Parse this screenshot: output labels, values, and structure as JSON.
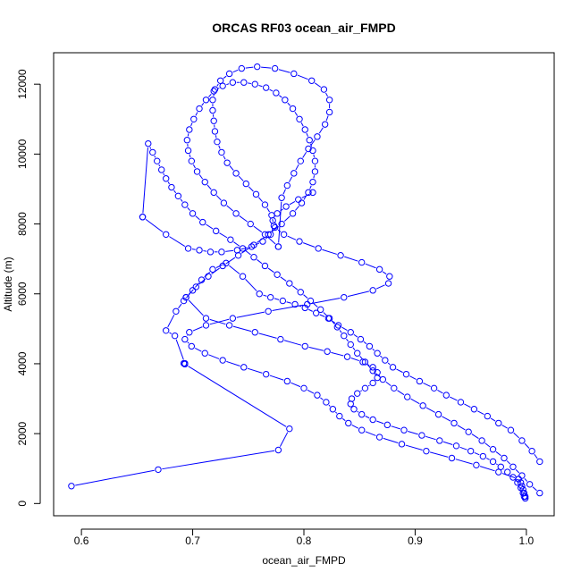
{
  "chart_data": {
    "type": "line",
    "title": "ORCAS RF03 ocean_air_FMPD",
    "xlabel": "ocean_air_FMPD",
    "ylabel": "Altitude (m)",
    "xlim": [
      0.575,
      1.025
    ],
    "ylim": [
      -350,
      12900
    ],
    "xticks": [
      0.6,
      0.7,
      0.8,
      0.9,
      1.0
    ],
    "xtick_labels": [
      "0.6",
      "0.7",
      "0.8",
      "0.9",
      "1.0"
    ],
    "yticks": [
      0,
      2000,
      4000,
      6000,
      8000,
      10000,
      12000
    ],
    "ytick_labels": [
      "0",
      "2000",
      "4000",
      "6000",
      "8000",
      "10000",
      "12000"
    ],
    "marker": "open-circle",
    "line_color": "#0000ff",
    "grid": false,
    "series": [
      {
        "x": [
          0.591,
          0.669,
          0.777,
          0.787,
          0.693,
          0.692,
          0.693,
          0.684,
          0.676,
          0.685,
          0.692,
          0.7,
          0.708,
          0.718,
          0.73,
          0.745,
          0.76,
          0.77,
          0.781,
          0.792,
          0.801,
          0.811,
          0.822,
          0.831,
          0.842,
          0.851,
          0.859,
          0.866,
          0.873,
          0.88,
          0.892,
          0.904,
          0.917,
          0.928,
          0.941,
          0.953,
          0.965,
          0.975,
          0.986,
          0.996,
          1.005,
          1.012
        ],
        "y": [
          500,
          970,
          1530,
          2140,
          3990,
          4010,
          4010,
          4800,
          4950,
          5500,
          5800,
          6100,
          6400,
          6700,
          6880,
          6500,
          6000,
          5900,
          5800,
          5700,
          5600,
          5450,
          5300,
          5100,
          4900,
          4700,
          4500,
          4300,
          4100,
          3900,
          3700,
          3500,
          3300,
          3100,
          2900,
          2700,
          2500,
          2300,
          2100,
          1800,
          1500,
          1200
        ]
      },
      {
        "x": [
          1.012,
          1.003,
          0.996,
          0.988,
          0.98,
          0.97,
          0.96,
          0.948,
          0.935,
          0.921,
          0.907,
          0.893,
          0.881,
          0.871,
          0.862,
          0.855,
          0.848,
          0.842,
          0.836,
          0.83,
          0.823,
          0.815,
          0.806,
          0.797,
          0.787,
          0.776,
          0.765,
          0.755,
          0.745,
          0.734,
          0.721,
          0.709,
          0.7,
          0.693,
          0.687,
          0.681,
          0.676,
          0.672,
          0.668,
          0.664,
          0.66,
          0.655
        ],
        "y": [
          300,
          550,
          800,
          1050,
          1300,
          1550,
          1800,
          2050,
          2300,
          2550,
          2800,
          3050,
          3300,
          3550,
          3800,
          4050,
          4300,
          4550,
          4800,
          5050,
          5300,
          5550,
          5800,
          6050,
          6300,
          6550,
          6800,
          7050,
          7300,
          7550,
          7800,
          8050,
          8300,
          8550,
          8800,
          9050,
          9300,
          9550,
          9800,
          10050,
          10300,
          8200
        ]
      },
      {
        "x": [
          0.655,
          0.676,
          0.696,
          0.706,
          0.716,
          0.726,
          0.74,
          0.753,
          0.763,
          0.77,
          0.773,
          0.771,
          0.765,
          0.757,
          0.748,
          0.739,
          0.731,
          0.726,
          0.722,
          0.72,
          0.719,
          0.718,
          0.718,
          0.72,
          0.725,
          0.733,
          0.744,
          0.758,
          0.774,
          0.791,
          0.807,
          0.818,
          0.823,
          0.823,
          0.819,
          0.812,
          0.804,
          0.797,
          0.791,
          0.785,
          0.78,
          0.777
        ],
        "y": [
          8200,
          7700,
          7300,
          7250,
          7200,
          7200,
          7250,
          7350,
          7500,
          7700,
          7950,
          8250,
          8550,
          8850,
          9150,
          9450,
          9750,
          10050,
          10350,
          10650,
          10950,
          11250,
          11550,
          11850,
          12100,
          12300,
          12450,
          12500,
          12450,
          12300,
          12100,
          11850,
          11550,
          11200,
          10850,
          10500,
          10150,
          9800,
          9450,
          9100,
          8750,
          7350
        ]
      },
      {
        "x": [
          0.777,
          0.765,
          0.752,
          0.739,
          0.728,
          0.719,
          0.711,
          0.704,
          0.699,
          0.696,
          0.695,
          0.697,
          0.701,
          0.706,
          0.712,
          0.719,
          0.727,
          0.736,
          0.746,
          0.756,
          0.766,
          0.775,
          0.783,
          0.79,
          0.796,
          0.801,
          0.805,
          0.808,
          0.81,
          0.81,
          0.808,
          0.804,
          0.798,
          0.79,
          0.78,
          0.768,
          0.755,
          0.741,
          0.727,
          0.714,
          0.703,
          0.694
        ],
        "y": [
          7350,
          7700,
          8000,
          8300,
          8600,
          8900,
          9200,
          9500,
          9800,
          10100,
          10400,
          10700,
          11000,
          11300,
          11550,
          11800,
          11950,
          12050,
          12050,
          12000,
          11900,
          11750,
          11550,
          11300,
          11000,
          10700,
          10400,
          10100,
          9800,
          9500,
          9200,
          8900,
          8600,
          8300,
          8000,
          7700,
          7400,
          7100,
          6800,
          6500,
          6200,
          5900
        ]
      },
      {
        "x": [
          0.694,
          0.712,
          0.733,
          0.756,
          0.779,
          0.801,
          0.821,
          0.839,
          0.853,
          0.862,
          0.866,
          0.866,
          0.862,
          0.855,
          0.848,
          0.843,
          0.842,
          0.845,
          0.852,
          0.862,
          0.875,
          0.89,
          0.906,
          0.922,
          0.937,
          0.95,
          0.961,
          0.97,
          0.977,
          0.983,
          0.988,
          0.992,
          0.995,
          0.997,
          0.998,
          0.999,
          0.999,
          0.998,
          0.997,
          0.996,
          0.995,
          0.993
        ],
        "y": [
          5900,
          5300,
          5100,
          4900,
          4700,
          4500,
          4350,
          4200,
          4050,
          3900,
          3750,
          3600,
          3450,
          3300,
          3150,
          3000,
          2850,
          2700,
          2550,
          2400,
          2250,
          2100,
          1950,
          1800,
          1650,
          1500,
          1350,
          1200,
          1050,
          900,
          750,
          600,
          450,
          300,
          200,
          150,
          200,
          300,
          400,
          500,
          600,
          700
        ]
      },
      {
        "x": [
          0.993,
          0.975,
          0.955,
          0.933,
          0.91,
          0.888,
          0.868,
          0.852,
          0.84,
          0.832,
          0.826,
          0.82,
          0.812,
          0.8,
          0.785,
          0.766,
          0.746,
          0.727,
          0.711,
          0.699,
          0.693,
          0.697,
          0.712,
          0.736,
          0.768,
          0.803,
          0.836,
          0.862,
          0.876,
          0.877,
          0.868,
          0.852,
          0.833,
          0.813,
          0.796,
          0.782,
          0.774,
          0.772,
          0.776,
          0.784,
          0.795,
          0.808
        ],
        "y": [
          700,
          900,
          1100,
          1300,
          1500,
          1700,
          1900,
          2100,
          2300,
          2500,
          2700,
          2900,
          3100,
          3300,
          3500,
          3700,
          3900,
          4100,
          4300,
          4500,
          4700,
          4900,
          5100,
          5300,
          5500,
          5700,
          5900,
          6100,
          6300,
          6500,
          6700,
          6900,
          7100,
          7300,
          7500,
          7700,
          7900,
          8100,
          8300,
          8500,
          8700,
          8900
        ]
      }
    ]
  }
}
